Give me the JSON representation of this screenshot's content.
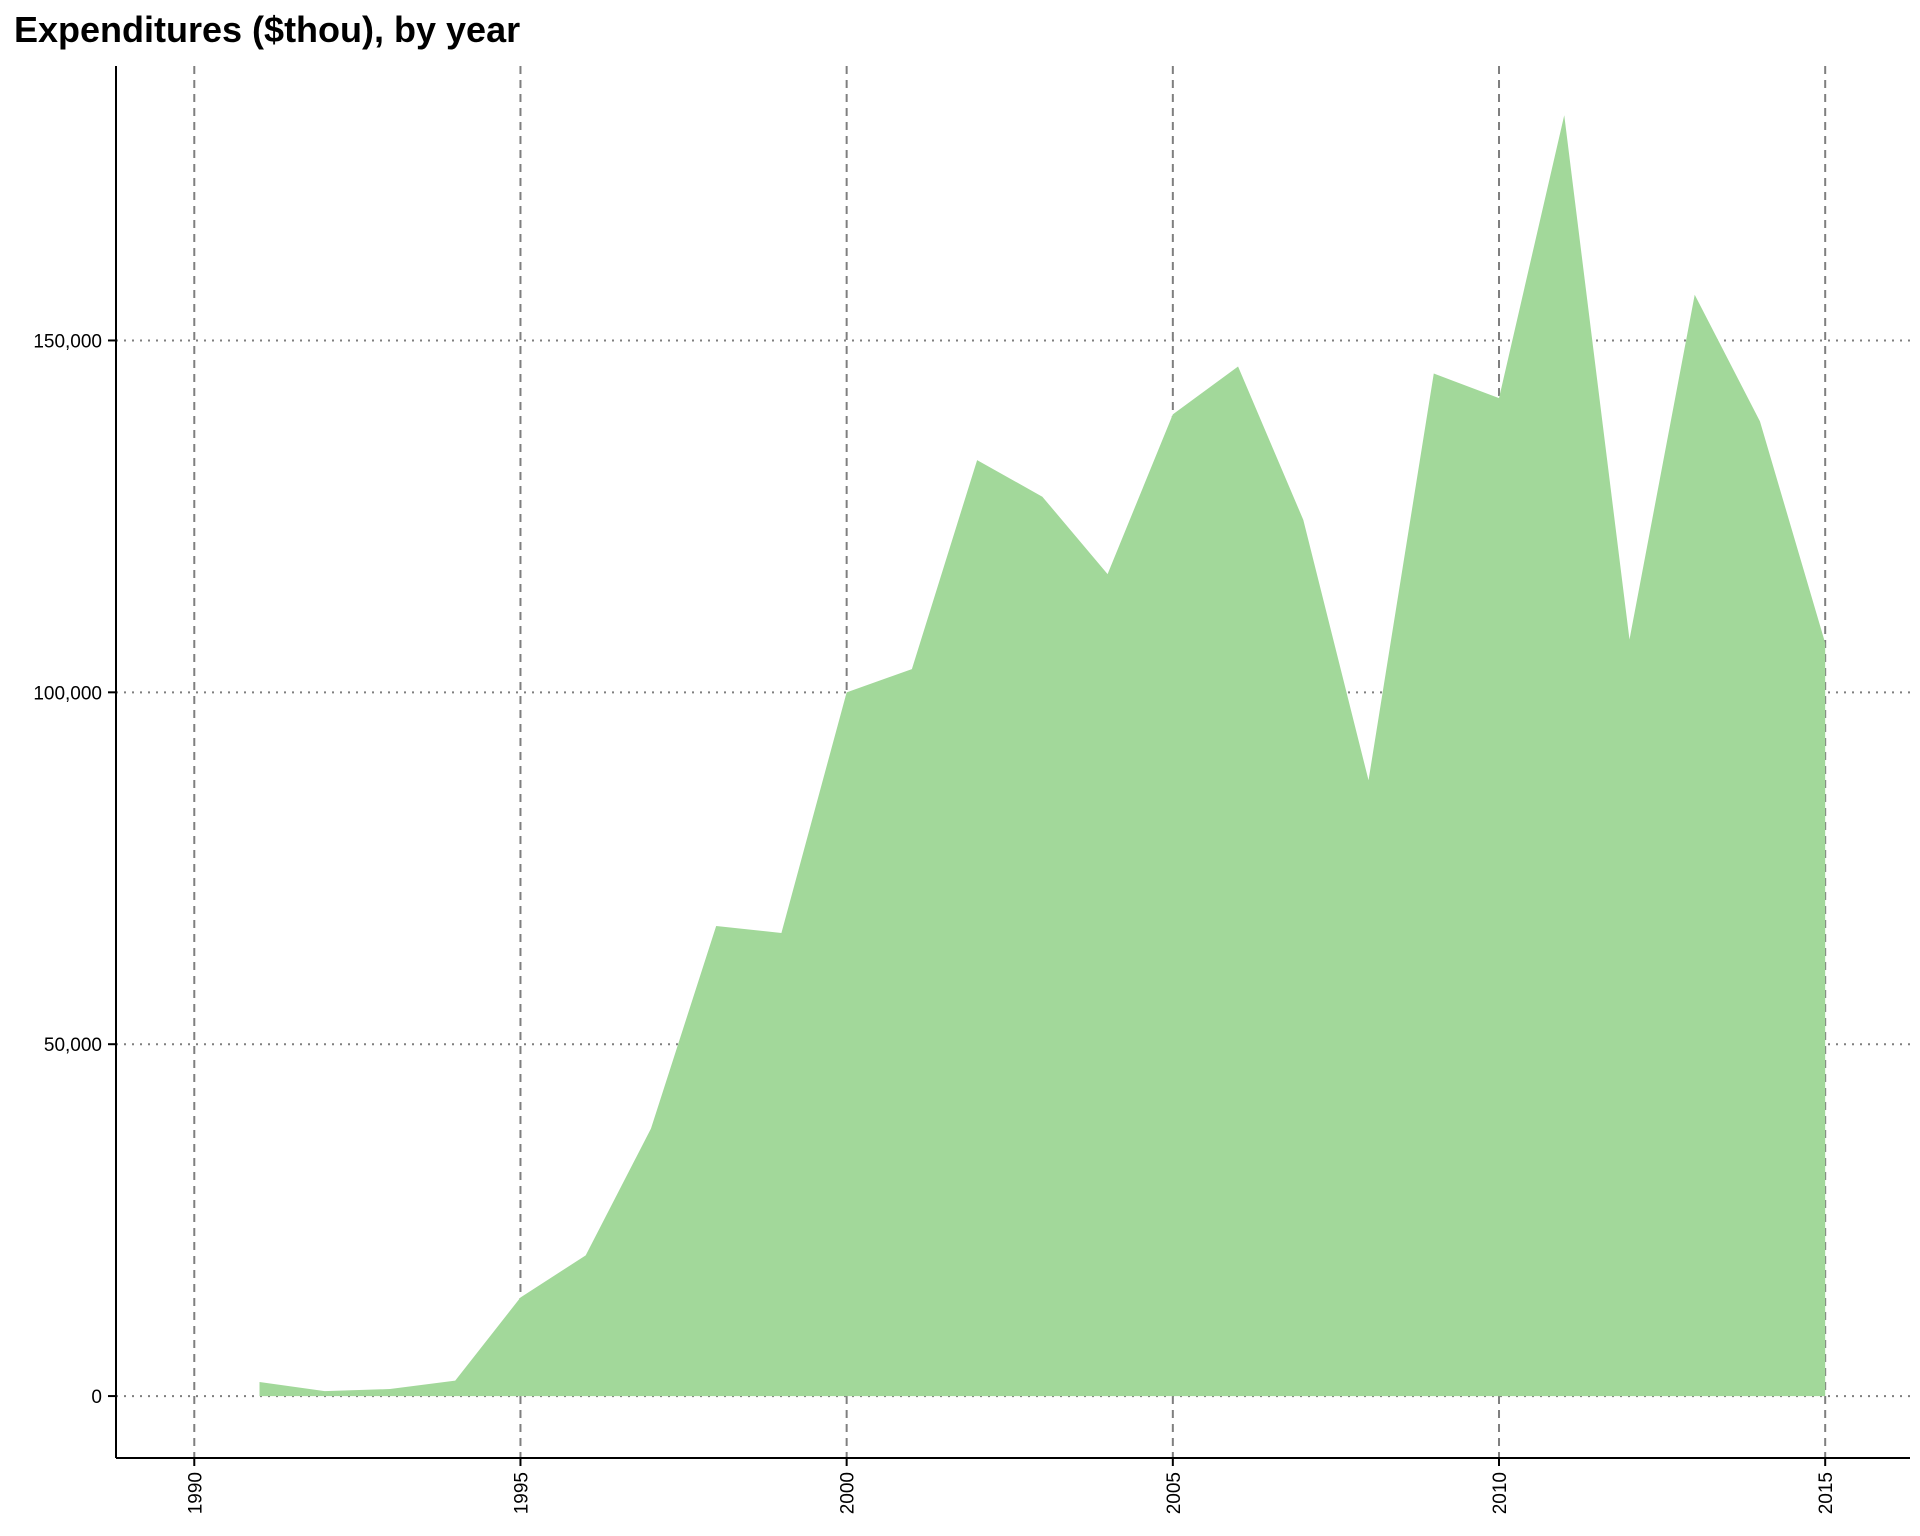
{
  "chart_data": {
    "type": "area",
    "title": "Expenditures ($thou), by year",
    "xlabel": "",
    "ylabel": "",
    "x": [
      1991,
      1992,
      1993,
      1994,
      1995,
      1996,
      1997,
      1998,
      1999,
      2000,
      2001,
      2002,
      2003,
      2004,
      2005,
      2006,
      2007,
      2008,
      2009,
      2010,
      2011,
      2012,
      2013,
      2014,
      2015
    ],
    "series": [
      {
        "values": [
          2000,
          700,
          1000,
          2200,
          14000,
          20000,
          38000,
          66800,
          65800,
          100000,
          103300,
          133000,
          127800,
          116800,
          139500,
          146300,
          124500,
          87500,
          145300,
          141800,
          182000,
          107500,
          156500,
          138500,
          107000
        ]
      }
    ],
    "xlim": [
      1988.8,
      2016.3
    ],
    "ylim": [
      -8800,
      189000
    ],
    "x_ticks": [
      1990,
      1995,
      2000,
      2005,
      2010,
      2015
    ],
    "y_ticks": [
      0,
      50000,
      100000,
      150000
    ],
    "x_tick_labels": [
      "1990",
      "1995",
      "2000",
      "2005",
      "2010",
      "2015"
    ],
    "y_tick_labels": [
      "0",
      "50,000",
      "100,000",
      "150,000"
    ],
    "grid": true,
    "legend": "none",
    "colors": {
      "fill": "#a2d89a",
      "grid": "#7f7f7f",
      "axis": "#000000"
    }
  }
}
